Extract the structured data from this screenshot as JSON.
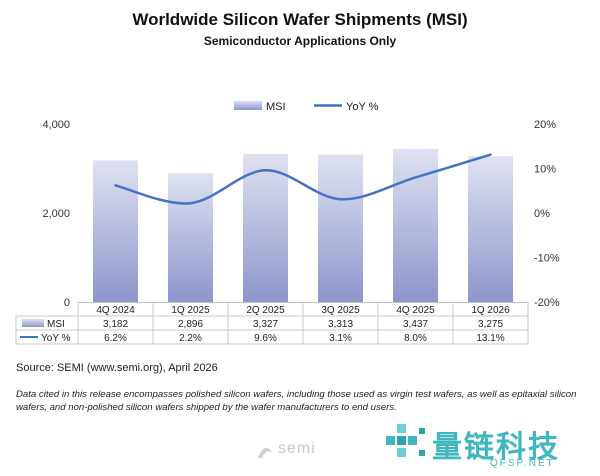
{
  "chart_data": {
    "type": "bar",
    "title": "Worldwide Silicon Wafer Shipments (MSI)",
    "subtitle": "Semiconductor Applications Only",
    "categories": [
      "4Q 2024",
      "1Q 2025",
      "2Q 2025",
      "3Q 2025",
      "4Q 2025",
      "1Q 2026"
    ],
    "series": [
      {
        "name": "MSI",
        "type": "bar",
        "axis": "left",
        "values": [
          3182,
          2896,
          3327,
          3313,
          3437,
          3275
        ],
        "labels": [
          "3,182",
          "2,896",
          "3,327",
          "3,313",
          "3,437",
          "3,275"
        ],
        "color": "#aeb4dc"
      },
      {
        "name": "YoY %",
        "type": "line",
        "axis": "right",
        "values": [
          6.2,
          2.2,
          9.6,
          3.1,
          8.0,
          13.1
        ],
        "labels": [
          "6.2%",
          "2.2%",
          "9.6%",
          "3.1%",
          "8.0%",
          "13.1%"
        ],
        "color": "#4472c4"
      }
    ],
    "ylim_left": [
      0,
      4000
    ],
    "ylim_right": [
      -20,
      20
    ],
    "left_ticks": [
      "0",
      "2,000",
      "4,000"
    ],
    "right_ticks": [
      "-20%",
      "-10%",
      "0%",
      "10%",
      "20%"
    ],
    "legend_position": "top-center",
    "grid": false
  },
  "footer": {
    "source": "Source: SEMI (www.semi.org), April 2026",
    "note": "Data cited in this release encompasses polished silicon wafers, including those used as virgin test wafers, as well as epitaxial silicon wafers, and non-polished silicon wafers shipped by the wafer manufacturers to end users."
  },
  "logo": {
    "text": "semi"
  },
  "watermark": {
    "cn": "量链科技",
    "en": "QFSP.NET",
    "color": "#3fb7c0"
  },
  "colors": {
    "bar_top": "#d9dcef",
    "bar_bottom": "#8e96cc",
    "line": "#4472c4",
    "table_border": "#c9c9c9"
  }
}
